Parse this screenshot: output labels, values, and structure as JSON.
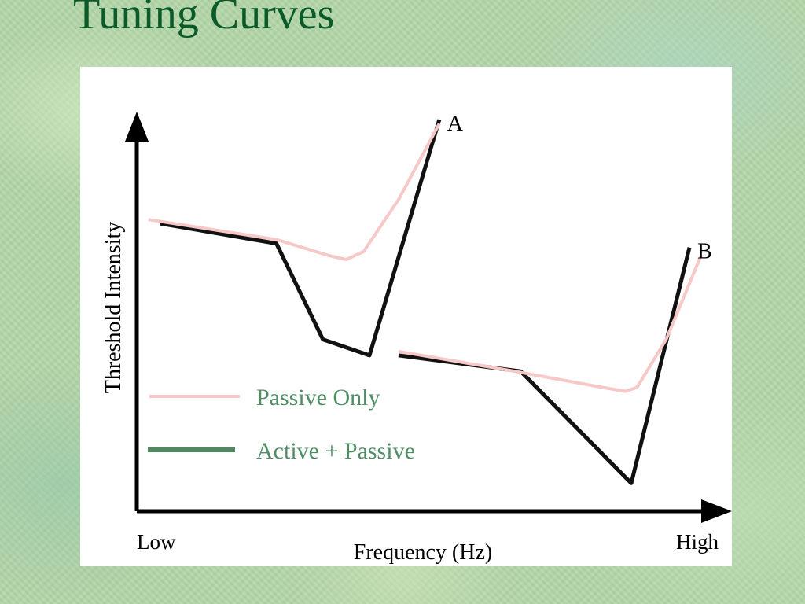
{
  "slide": {
    "title": "Tuning Curves"
  },
  "chart_data": {
    "type": "line",
    "xlabel": "Frequency (Hz)",
    "ylabel": "Threshold Intensity",
    "x_tick_labels": [
      "Low",
      "High"
    ],
    "xlim": [
      0,
      100
    ],
    "ylim": [
      0,
      100
    ],
    "grid": false,
    "legend_position": "lower-left",
    "legend": [
      {
        "label": "Passive Only",
        "color": "#f7c8c8"
      },
      {
        "label": "Active + Passive",
        "color": "#4e8a60"
      }
    ],
    "curves": [
      {
        "label": "A",
        "series": [
          {
            "name": "Passive Only",
            "color": "#f7c8c8",
            "x": [
              2,
              24,
              33,
              36,
              39,
              45,
              52
            ],
            "y": [
              73,
              68,
              64,
              63,
              65,
              78,
              97
            ]
          },
          {
            "name": "Active + Passive",
            "color": "#111111",
            "x": [
              4,
              24,
              32,
              40,
              52
            ],
            "y": [
              72,
              67,
              43,
              39,
              98
            ]
          }
        ]
      },
      {
        "label": "B",
        "series": [
          {
            "name": "Passive Only",
            "color": "#f7c8c8",
            "x": [
              45,
              65,
              80,
              84,
              86,
              91,
              97
            ],
            "y": [
              40,
              35,
              31,
              30,
              31,
              43,
              64
            ]
          },
          {
            "name": "Active + Passive",
            "color": "#111111",
            "x": [
              45,
              66,
              85,
              95
            ],
            "y": [
              39,
              35,
              7,
              66
            ]
          }
        ]
      }
    ]
  }
}
